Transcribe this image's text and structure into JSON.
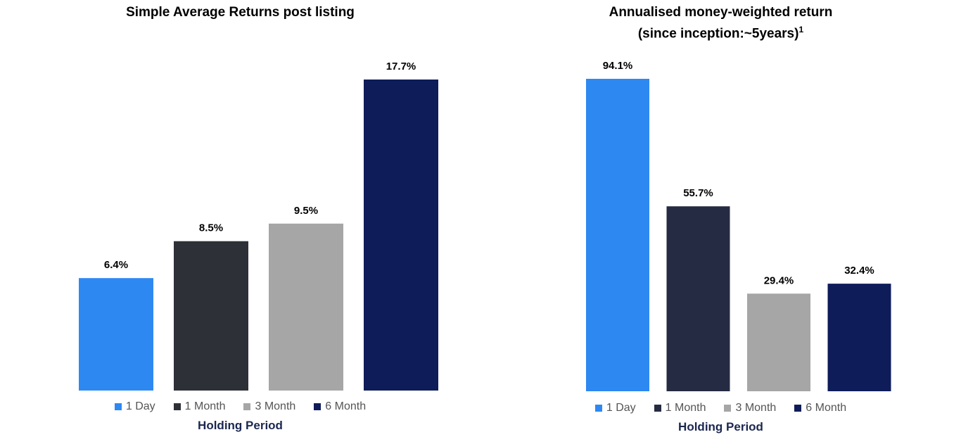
{
  "colors": {
    "one_day": "#2e88f2",
    "one_month_left": "#2e3038",
    "one_month_right": "#252b42",
    "three_month": "#a6a6a6",
    "six_month": "#0e1c5a",
    "axis_label": "#1b2750"
  },
  "chart_data": [
    {
      "type": "bar",
      "title": "Simple Average Returns post listing",
      "xlabel": "Holding Period",
      "ylabel": "",
      "categories": [
        "1 Day",
        "1 Month",
        "3 Month",
        "6 Month"
      ],
      "values": [
        6.4,
        8.5,
        9.5,
        17.7
      ],
      "value_labels": [
        "6.4%",
        "8.5%",
        "9.5%",
        "17.7%"
      ],
      "ylim": [
        0,
        17.7
      ],
      "legend": "bottom",
      "grid": false
    },
    {
      "type": "bar",
      "title": "Annualised money-weighted return",
      "subtitle": "(since inception:~5years)",
      "subtitle_sup": "1",
      "xlabel": "Holding Period",
      "ylabel": "",
      "categories": [
        "1 Day",
        "1 Month",
        "3 Month",
        "6 Month"
      ],
      "values": [
        94.1,
        55.7,
        29.4,
        32.4
      ],
      "value_labels": [
        "94.1%",
        "55.7%",
        "29.4%",
        "32.4%"
      ],
      "ylim": [
        0,
        94.1
      ],
      "legend": "bottom",
      "grid": false
    }
  ]
}
